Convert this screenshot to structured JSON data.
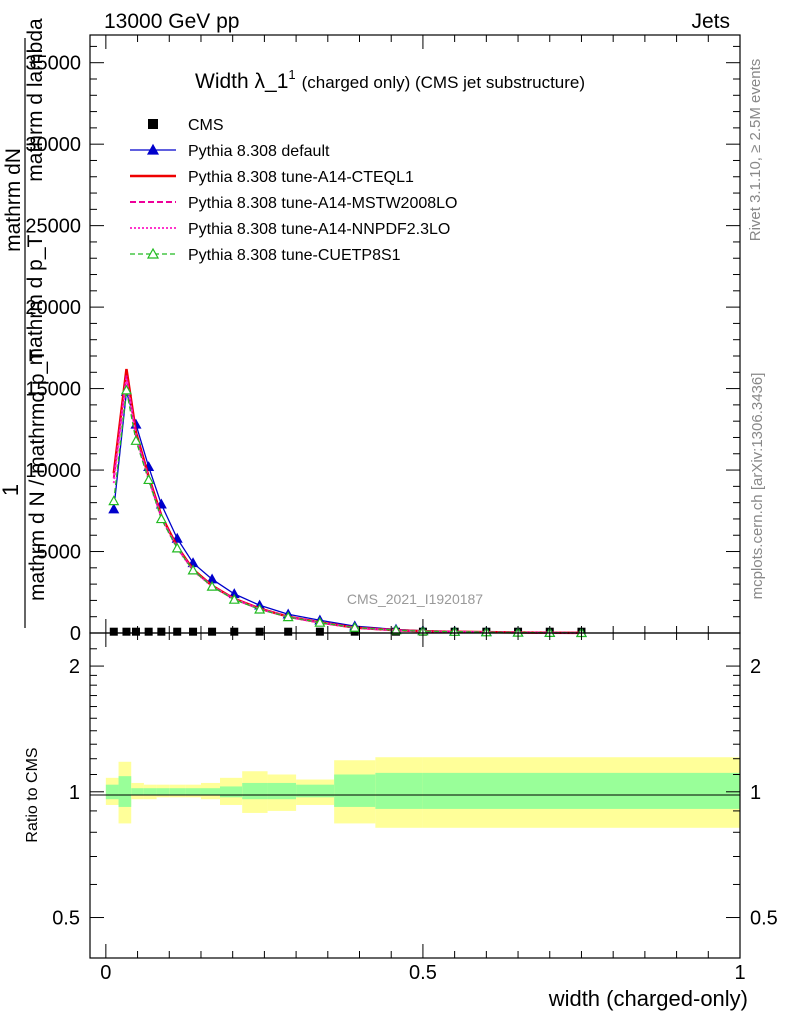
{
  "header": {
    "left": "13000 GeV pp",
    "right": "Jets"
  },
  "side": {
    "rivet": "Rivet 3.1.10, ≥ 2.5M events",
    "mcplots": "mcplots.cern.ch [arXiv:1306.3436]"
  },
  "watermark": "CMS_2021_I1920187",
  "colors": {
    "cms": "#000000",
    "default": "#0000cc",
    "cteql1": "#ee0000",
    "mstw": "#ee0099",
    "nnpdf": "#ff33cc",
    "cuetp8s1": "#22bb22",
    "band_inner": "#99ff99",
    "band_outer": "#ffff99"
  },
  "chart_data": [
    {
      "type": "line",
      "title": "Width λ_1",
      "title_sup": "1",
      "title_suffix": "(charged only) (CMS jet substructure)",
      "ylabel_lines": [
        "1",
        "mathrm d N / mathrmd p_T",
        "mathrm d p_T mathrm d lambda",
        "mathrm dN"
      ],
      "ylabel_top": "mathrm d lambda",
      "ylabel_mid": "mathrm d p_T",
      "ylim": [
        0,
        36700
      ],
      "yticks": [
        0,
        5000,
        10000,
        15000,
        20000,
        25000,
        30000,
        35000
      ],
      "ytick_labels": [
        "0",
        "5000",
        "10000",
        "15000",
        "20000",
        "25000",
        "30000",
        "35000"
      ],
      "xlim": [
        -0.025,
        1.0
      ],
      "x": [
        0.0125,
        0.0325,
        0.0475,
        0.0675,
        0.0875,
        0.1125,
        0.1375,
        0.1675,
        0.2025,
        0.2425,
        0.2875,
        0.3375,
        0.3925,
        0.4575,
        0.5,
        0.55,
        0.6,
        0.65,
        0.7,
        0.75
      ],
      "series": [
        {
          "name": "CMS",
          "marker": "square",
          "values": [
            80,
            80,
            80,
            80,
            80,
            80,
            80,
            80,
            80,
            80,
            80,
            80,
            80,
            80,
            80,
            80,
            80,
            80,
            80,
            80
          ]
        },
        {
          "name": "Pythia 8.308 default",
          "marker": "triangle-filled",
          "style": "solid",
          "values": [
            7600,
            14800,
            12800,
            10200,
            7900,
            5800,
            4300,
            3300,
            2400,
            1700,
            1150,
            780,
            420,
            220,
            140,
            100,
            70,
            40,
            20,
            10
          ]
        },
        {
          "name": "Pythia 8.308 tune-A14-CTEQL1",
          "style": "thick-solid",
          "values": [
            9800,
            16200,
            12300,
            9600,
            7200,
            5300,
            3900,
            2900,
            2100,
            1500,
            1000,
            650,
            330,
            170,
            110,
            80,
            50,
            30,
            15,
            8
          ]
        },
        {
          "name": "Pythia 8.308 tune-A14-MSTW2008LO",
          "style": "dashed",
          "values": [
            9500,
            15800,
            12100,
            9500,
            7100,
            5250,
            3850,
            2880,
            2080,
            1480,
            990,
            640,
            325,
            165,
            105,
            78,
            48,
            28,
            14,
            8
          ]
        },
        {
          "name": "Pythia 8.308 tune-A14-NNPDF2.3LO",
          "style": "dotted",
          "values": [
            9200,
            15600,
            12000,
            9400,
            7050,
            5200,
            3830,
            2860,
            2070,
            1470,
            985,
            635,
            320,
            160,
            100,
            75,
            46,
            27,
            14,
            7
          ]
        },
        {
          "name": "Pythia 8.308 tune-CUETP8S1",
          "marker": "triangle-open",
          "style": "dashed",
          "values": [
            8100,
            14900,
            11800,
            9400,
            7000,
            5200,
            3850,
            2850,
            2050,
            1450,
            980,
            640,
            330,
            170,
            110,
            80,
            50,
            30,
            15,
            8
          ]
        }
      ]
    },
    {
      "type": "area",
      "ylabel": "Ratio to CMS",
      "xlabel": "width (charged-only)",
      "ylim": [
        0.4,
        2.4
      ],
      "log_y": true,
      "yticks": [
        0.5,
        1,
        2
      ],
      "ytick_labels": [
        "0.5",
        "1",
        "2"
      ],
      "xticks": [
        0,
        0.5,
        1
      ],
      "xtick_labels": [
        "0",
        "0.5",
        "1"
      ],
      "bins": [
        0,
        0.02,
        0.04,
        0.06,
        0.08,
        0.1,
        0.125,
        0.15,
        0.18,
        0.215,
        0.255,
        0.3,
        0.36,
        0.425,
        0.5,
        1.0
      ],
      "band_inner_low": [
        0.96,
        0.92,
        0.98,
        0.98,
        0.98,
        0.98,
        0.98,
        0.98,
        0.97,
        0.96,
        0.96,
        0.97,
        0.92,
        0.91,
        0.91
      ],
      "band_inner_high": [
        1.04,
        1.09,
        1.02,
        1.02,
        1.02,
        1.02,
        1.02,
        1.02,
        1.03,
        1.05,
        1.05,
        1.04,
        1.1,
        1.11,
        1.11
      ],
      "band_outer_low": [
        0.93,
        0.84,
        0.96,
        0.96,
        0.97,
        0.97,
        0.97,
        0.96,
        0.93,
        0.89,
        0.9,
        0.93,
        0.84,
        0.82,
        0.82
      ],
      "band_outer_high": [
        1.08,
        1.18,
        1.05,
        1.04,
        1.04,
        1.04,
        1.04,
        1.05,
        1.08,
        1.12,
        1.1,
        1.07,
        1.19,
        1.21,
        1.21
      ]
    }
  ]
}
